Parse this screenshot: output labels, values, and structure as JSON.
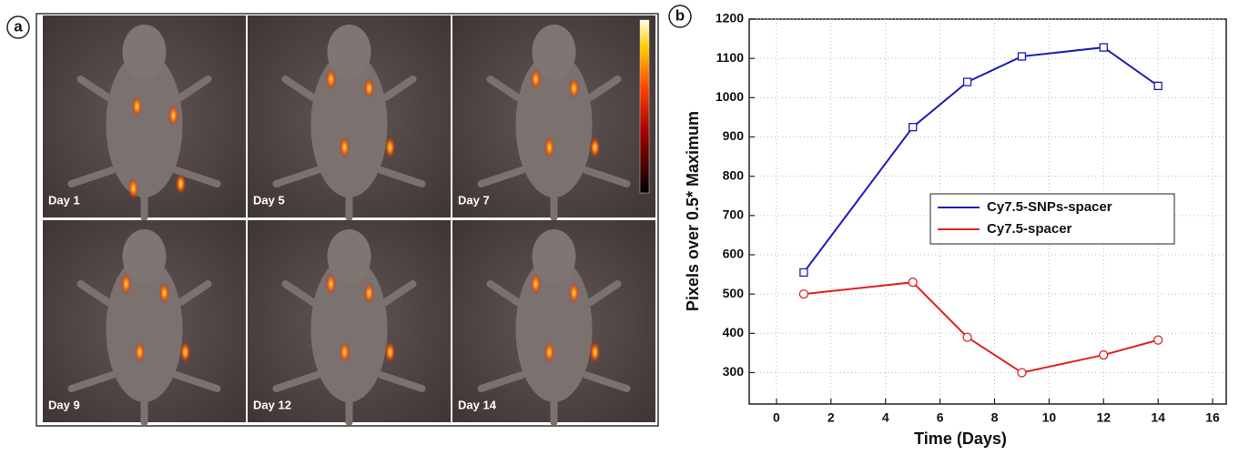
{
  "panel_a": {
    "label": "a",
    "images": [
      {
        "label": "Day 1"
      },
      {
        "label": "Day 5"
      },
      {
        "label": "Day 7"
      },
      {
        "label": "Day 9"
      },
      {
        "label": "Day 12"
      },
      {
        "label": "Day 14"
      }
    ]
  },
  "panel_b": {
    "label": "b"
  },
  "chart_data": {
    "type": "line",
    "x_label": "Time (Days)",
    "y_label": "Pixels over 0.5* Maximum",
    "series": [
      {
        "name": "Cy7.5-SNPs-spacer",
        "color": "#1c1cb4",
        "marker": "square",
        "x": [
          1,
          5,
          7,
          9,
          12,
          14
        ],
        "values": [
          555,
          925,
          1040,
          1105,
          1128,
          1030
        ]
      },
      {
        "name": "Cy7.5-spacer",
        "color": "#dd2222",
        "marker": "circle",
        "x": [
          1,
          5,
          7,
          9,
          12,
          14
        ],
        "values": [
          500,
          530,
          390,
          300,
          345,
          383
        ]
      }
    ],
    "xlim": [
      -1,
      16.5
    ],
    "ylim": [
      220,
      1200
    ],
    "xticks": [
      0,
      2,
      4,
      6,
      8,
      10,
      12,
      14,
      16
    ],
    "yticks": [
      300,
      400,
      500,
      600,
      700,
      800,
      900,
      1000,
      1100,
      1200
    ],
    "grid": true,
    "legend": "right"
  }
}
